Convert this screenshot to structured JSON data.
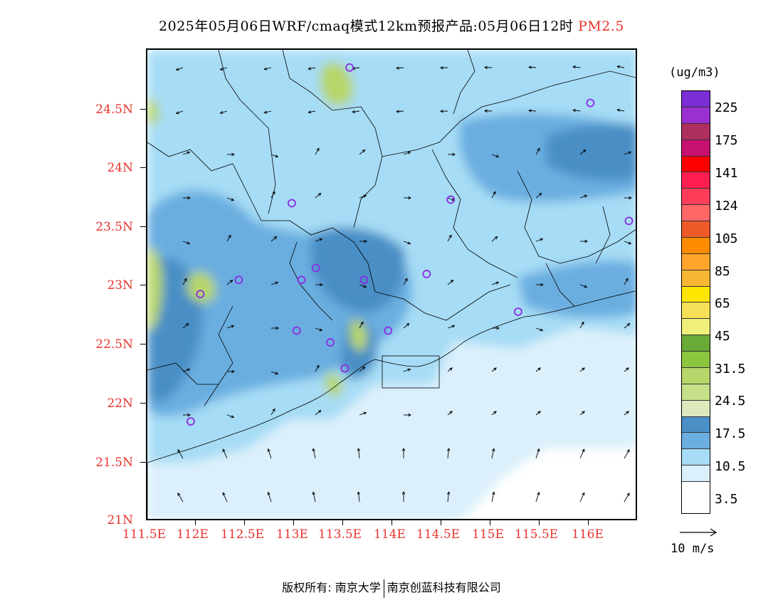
{
  "title": {
    "main": "2025年05月06日WRF/cmaq模式12km预报产品:05月06日12时",
    "pollutant": "PM2.5",
    "pollutant_color": "#e8332e"
  },
  "axes": {
    "y_ticks": [
      "24.5N",
      "24N",
      "23.5N",
      "23N",
      "22.5N",
      "22N",
      "21.5N",
      "21N"
    ],
    "x_ticks": [
      "111.5E",
      "112E",
      "112.5E",
      "113E",
      "113.5E",
      "114E",
      "114.5E",
      "115E",
      "115.5E",
      "116E"
    ],
    "x_range": [
      111.5,
      116.6
    ],
    "y_range": [
      21.0,
      25.0
    ],
    "label_color": "#e8332e"
  },
  "legend": {
    "unit": "(ug/m3)",
    "colors": [
      "#7b2ed6",
      "#9b30d0",
      "#ae2f5e",
      "#c8106f",
      "#ff0000",
      "#ff1e50",
      "#ff3d5a",
      "#ff6666",
      "#f05a28",
      "#ff8c00",
      "#ffa52b",
      "#f7b733",
      "#ffe600",
      "#f5e057",
      "#eef07a",
      "#6aaa36",
      "#8cc63f",
      "#b7d66a",
      "#c6df88",
      "#dde9bd",
      "#4a8fc6",
      "#6aaee0",
      "#a6dcf5",
      "#dbf0fb",
      "#ffffff"
    ],
    "labels": [
      "225",
      "175",
      "141",
      "124",
      "105",
      "85",
      "65",
      "45",
      "31.5",
      "24.5",
      "17.5",
      "10.5",
      "3.5"
    ]
  },
  "wind_reference": {
    "label": "10 m/s"
  },
  "stations": [
    {
      "lon": 113.6,
      "lat": 24.85
    },
    {
      "lon": 116.1,
      "lat": 24.55
    },
    {
      "lon": 113.0,
      "lat": 23.7
    },
    {
      "lon": 114.65,
      "lat": 23.73
    },
    {
      "lon": 116.5,
      "lat": 23.55
    },
    {
      "lon": 113.25,
      "lat": 23.15
    },
    {
      "lon": 112.45,
      "lat": 23.05
    },
    {
      "lon": 113.1,
      "lat": 23.05
    },
    {
      "lon": 113.75,
      "lat": 23.05
    },
    {
      "lon": 114.4,
      "lat": 23.1
    },
    {
      "lon": 112.05,
      "lat": 22.93
    },
    {
      "lon": 115.35,
      "lat": 22.78
    },
    {
      "lon": 113.05,
      "lat": 22.62
    },
    {
      "lon": 114.0,
      "lat": 22.62
    },
    {
      "lon": 113.4,
      "lat": 22.52
    },
    {
      "lon": 113.55,
      "lat": 22.3
    },
    {
      "lon": 111.95,
      "lat": 21.85
    }
  ],
  "footer": {
    "left": "版权所有: 南京大学",
    "right": "南京创蓝科技有限公司"
  }
}
